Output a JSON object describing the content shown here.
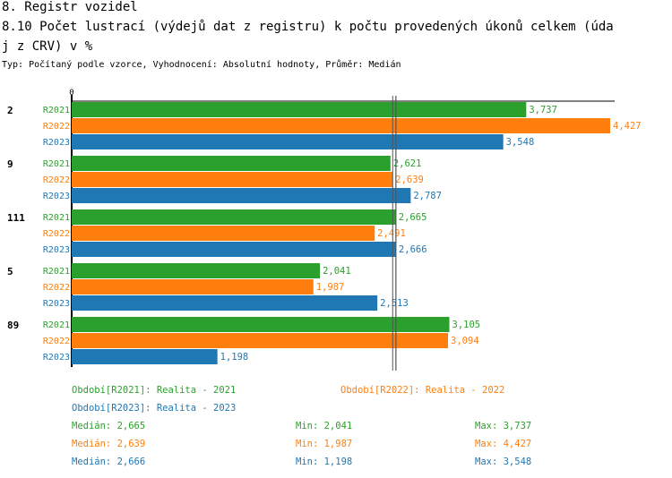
{
  "heading": "8. Registr vozidel",
  "title_line1": "8.10 Počet lustrací (výdejů dat z registru) k počtu provedených úkonů celkem (úda",
  "title_line2": "j z CRV) v %",
  "subtitle": "Typ: Počítaný podle vzorce, Vyhodnocení: Absolutní hodnoty, Průměr: Medián",
  "colors": {
    "R2021": "#2ca02c",
    "R2022": "#ff7f0e",
    "R2023": "#1f77b4"
  },
  "chart_data": {
    "type": "bar",
    "orientation": "horizontal",
    "categories": [
      "2",
      "9",
      "111",
      "5",
      "89"
    ],
    "axis_zero_label": "0",
    "xlim": [
      0,
      4.427
    ],
    "series": [
      {
        "name": "R2021",
        "values": [
          3.737,
          2.621,
          2.665,
          2.041,
          3.105
        ],
        "labels": [
          "3,737",
          "2,621",
          "2,665",
          "2,041",
          "3,105"
        ]
      },
      {
        "name": "R2022",
        "values": [
          4.427,
          2.639,
          2.491,
          1.987,
          3.094
        ],
        "labels": [
          "4,427",
          "2,639",
          "2,491",
          "1,987",
          "3,094"
        ]
      },
      {
        "name": "R2023",
        "values": [
          3.548,
          2.787,
          2.666,
          2.513,
          1.198
        ],
        "labels": [
          "3,548",
          "2,787",
          "2,666",
          "2,513",
          "1,198"
        ]
      }
    ],
    "medians": [
      2.665,
      2.639,
      2.666
    ]
  },
  "legend": [
    {
      "text": "Období[R2021]: Realita - 2021"
    },
    {
      "text": "Období[R2022]: Realita - 2022"
    },
    {
      "text": "Období[R2023]: Realita - 2023"
    }
  ],
  "stats": [
    {
      "median": "Medián: 2,665",
      "min": "Min: 2,041",
      "max": "Max: 3,737"
    },
    {
      "median": "Medián: 2,639",
      "min": "Min: 1,987",
      "max": "Max: 4,427"
    },
    {
      "median": "Medián: 2,666",
      "min": "Min: 1,198",
      "max": "Max: 3,548"
    }
  ]
}
